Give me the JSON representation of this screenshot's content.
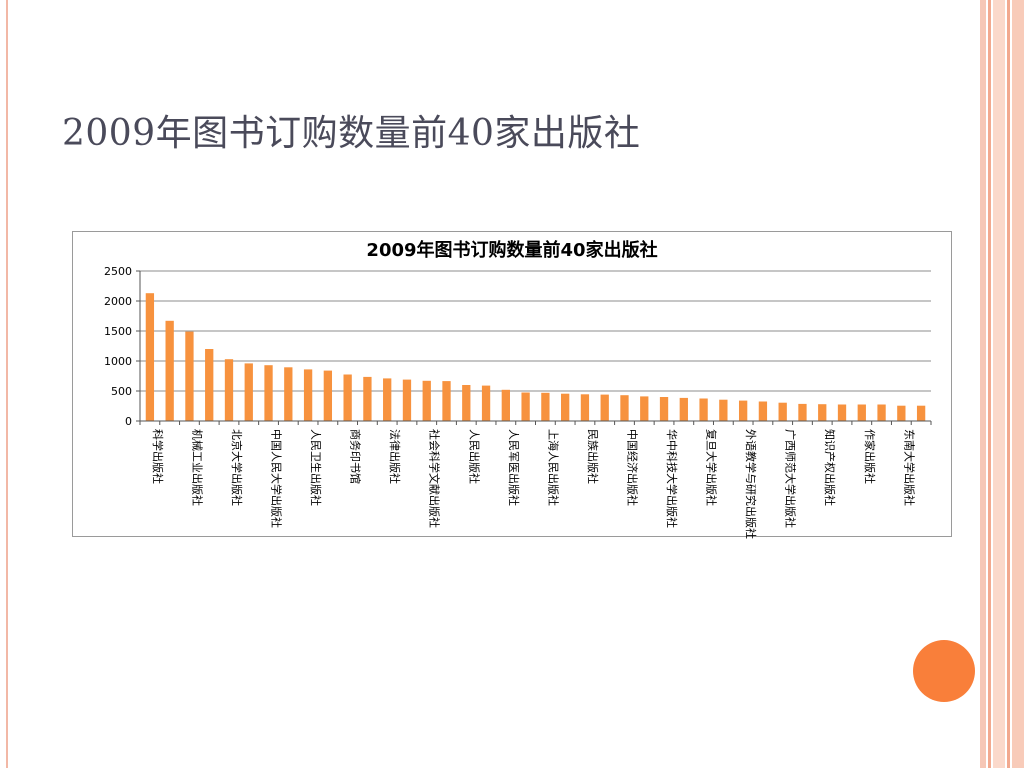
{
  "slide": {
    "title": "2009年图书订购数量前40家出版社"
  },
  "colors": {
    "bar": "#f7923e",
    "accent_circle": "#f97f3a",
    "grid": "#8c8c8c"
  },
  "chart_data": {
    "type": "bar",
    "title": "2009年图书订购数量前40家出版社",
    "xlabel": "",
    "ylabel": "",
    "ylim": [
      0,
      2500
    ],
    "yticks": [
      0,
      500,
      1000,
      1500,
      2000,
      2500
    ],
    "grid": true,
    "legend": "none",
    "categories": [
      "科学出版社",
      "",
      "机械工业出版社",
      "",
      "北京大学出版社",
      "",
      "中国人民大学出版社",
      "",
      "人民卫生出版社",
      "",
      "商务印书馆",
      "",
      "法律出版社",
      "",
      "社会科学文献出版社",
      "",
      "人民出版社",
      "",
      "人民军医出版社",
      "",
      "上海人民出版社",
      "",
      "民族出版社",
      "",
      "中国经济出版社",
      "",
      "华中科技大学出版社",
      "",
      "复旦大学出版社",
      "",
      "外语教学与研究出版社",
      "",
      "广西师范大学出版社",
      "",
      "知识产权出版社",
      "",
      "作家出版社",
      "",
      "东南大学出版社",
      ""
    ],
    "values": [
      2130,
      1670,
      1490,
      1200,
      1030,
      960,
      930,
      895,
      860,
      840,
      775,
      735,
      710,
      690,
      670,
      665,
      600,
      590,
      520,
      475,
      470,
      455,
      445,
      440,
      430,
      410,
      400,
      385,
      375,
      355,
      340,
      325,
      305,
      285,
      280,
      275,
      275,
      275,
      255,
      255
    ]
  }
}
